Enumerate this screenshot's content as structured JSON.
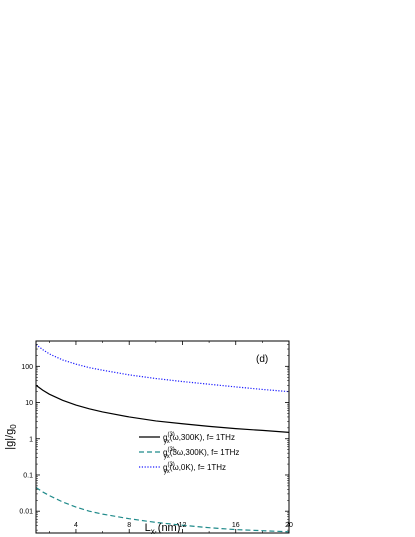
{
  "chart_data": {
    "type": "line",
    "panel_label": "(d)",
    "xlabel": {
      "main": "L",
      "sub": "x",
      "unit": " (nm)"
    },
    "ylabel": {
      "main": "|g|/g",
      "sub": "0"
    },
    "xlim": [
      1,
      20
    ],
    "ylim": [
      0.0025,
      500
    ],
    "yscale": "log",
    "grid": false,
    "legend_position": "lower-right",
    "x_ticks": [
      4,
      8,
      12,
      16,
      20
    ],
    "x_tick_labels": [
      "4",
      "8",
      "12",
      "16",
      "20"
    ],
    "y_ticks": [
      0.01,
      0.1,
      1,
      10,
      100
    ],
    "y_tick_labels": [
      "0.01",
      "0.1",
      "1",
      "10",
      "100"
    ],
    "series": [
      {
        "legend": {
          "base": "g",
          "sup": "(3)",
          "sub": "yx",
          "args": "(ω,300K), f= 1THz"
        },
        "color": "#000000",
        "dash": "solid",
        "x": [
          1,
          1.5,
          2,
          3,
          4,
          5,
          6,
          8,
          10,
          12,
          14,
          16,
          18,
          20
        ],
        "values": [
          30,
          22,
          17,
          11.5,
          8.5,
          6.7,
          5.5,
          4.0,
          3.1,
          2.6,
          2.2,
          1.9,
          1.7,
          1.5
        ]
      },
      {
        "legend": {
          "base": "g",
          "sup": "(3)",
          "sub": "yx",
          "args": "(3ω,300K), f= 1THz"
        },
        "color": "#1f8a8a",
        "dash": "dashed",
        "x": [
          1,
          1.5,
          2,
          3,
          4,
          5,
          6,
          8,
          10,
          12,
          14,
          16,
          18,
          20
        ],
        "values": [
          0.045,
          0.034,
          0.027,
          0.018,
          0.013,
          0.01,
          0.0083,
          0.0062,
          0.0049,
          0.0041,
          0.0035,
          0.0031,
          0.0029,
          0.0027
        ]
      },
      {
        "legend": {
          "base": "g",
          "sup": "(3)",
          "sub": "yx",
          "args": "(ω,0K), f= 1THz"
        },
        "color": "#1a1aff",
        "dash": "dotted",
        "x": [
          1,
          1.5,
          2,
          3,
          4,
          5,
          6,
          8,
          10,
          12,
          14,
          16,
          18,
          20
        ],
        "values": [
          400,
          290,
          220,
          150,
          115,
          92,
          78,
          58,
          46,
          38,
          32,
          27,
          23,
          20
        ]
      }
    ]
  }
}
